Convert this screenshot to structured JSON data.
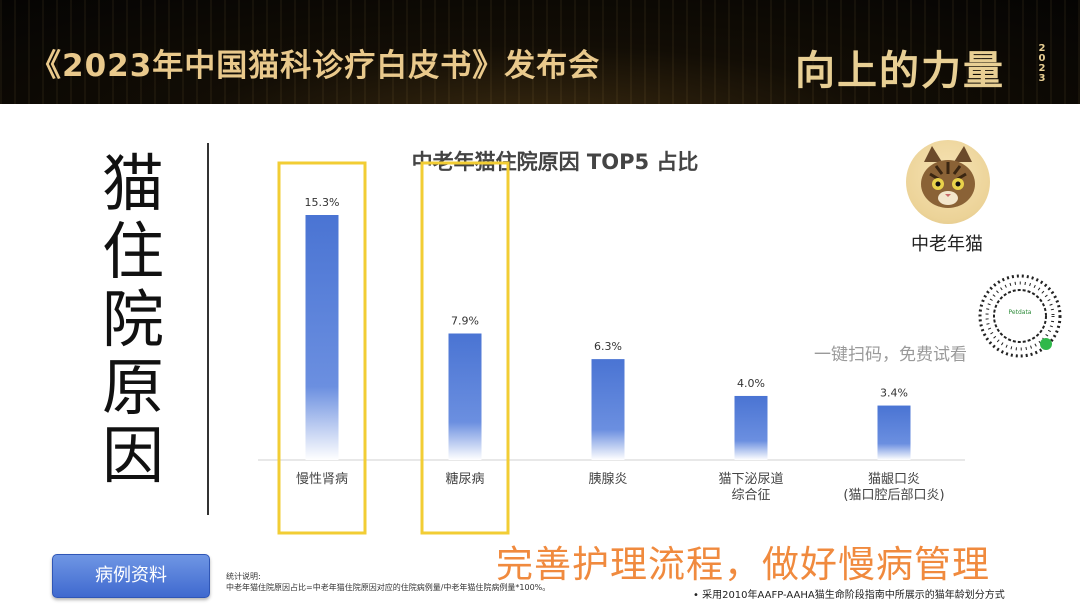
{
  "header": {
    "title": "《2023年中国猫科诊疗白皮书》发布会",
    "brand": "向上的力量",
    "brand_year": "2023"
  },
  "side_title": "猫住院原因",
  "avatar_label": "中老年猫",
  "qr_brand": "Petdata",
  "scan_text": "一键扫码，免费试看",
  "case_button": "病例资料",
  "note": {
    "line1": "统计说明:",
    "line2": "中老年猫住院原因占比=中老年猫住院原因对应的住院病例量/中老年猫住院病例量*100%。"
  },
  "slogan": "完善护理流程，做好慢病管理",
  "footnote": "•   采用2010年AAFP-AAHA猫生命阶段指南中所展示的猫年龄划分方式",
  "chart_data": {
    "type": "bar",
    "title": "中老年猫住院原因 TOP5 占比",
    "categories": [
      [
        "慢性肾病"
      ],
      [
        "糖尿病"
      ],
      [
        "胰腺炎"
      ],
      [
        "猫下泌尿道",
        "综合征"
      ],
      [
        "猫龈口炎",
        "(猫口腔后部口炎)"
      ]
    ],
    "values": [
      15.3,
      7.9,
      6.3,
      4.0,
      3.4
    ],
    "value_labels": [
      "15.3%",
      "7.9%",
      "6.3%",
      "4.0%",
      "3.4%"
    ],
    "highlighted": [
      0,
      1
    ],
    "bar_color": "#4a74d3",
    "highlight_color": "#f2cd34",
    "grid": false,
    "legend": "none"
  }
}
